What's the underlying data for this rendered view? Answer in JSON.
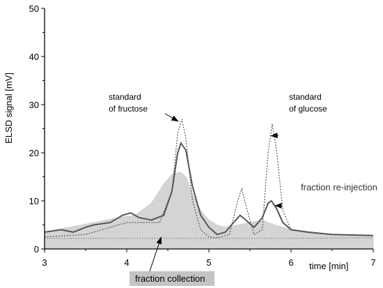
{
  "chart_data": {
    "type": "line",
    "xlabel": "time  [min]",
    "ylabel": "ELSD signal  [mV]",
    "xlim": [
      3,
      7
    ],
    "ylim": [
      0,
      50
    ],
    "xticks": [
      "3",
      "4",
      "5",
      "6",
      "7"
    ],
    "yticks": [
      "0",
      "10",
      "20",
      "30",
      "40",
      "50"
    ],
    "grid": false,
    "series": [
      {
        "style": "filled-area",
        "color": "#d4d4d4",
        "x": [
          3.0,
          3.3,
          3.6,
          3.9,
          4.1,
          4.3,
          4.45,
          4.55,
          4.65,
          4.72,
          4.8,
          4.9,
          5.0,
          5.1,
          5.2,
          5.35,
          5.5,
          5.65,
          5.8,
          6.0,
          6.2,
          6.5,
          6.8,
          7.0
        ],
        "y": [
          3.5,
          4.5,
          5.5,
          6.5,
          7.0,
          9.5,
          13.5,
          15.5,
          16.0,
          15.0,
          11.5,
          8.0,
          6.0,
          5.0,
          4.5,
          5.0,
          5.5,
          6.0,
          5.0,
          4.0,
          3.5,
          3.0,
          2.8,
          2.6
        ]
      },
      {
        "style": "solid",
        "color": "#555555",
        "x": [
          3.0,
          3.2,
          3.35,
          3.5,
          3.6,
          3.8,
          3.95,
          4.05,
          4.15,
          4.3,
          4.45,
          4.55,
          4.62,
          4.66,
          4.72,
          4.8,
          4.9,
          5.0,
          5.1,
          5.2,
          5.3,
          5.38,
          5.45,
          5.55,
          5.65,
          5.72,
          5.76,
          5.82,
          5.9,
          6.0,
          6.2,
          6.5,
          7.0
        ],
        "y": [
          3.5,
          4.0,
          3.5,
          4.5,
          5.0,
          5.5,
          7.0,
          7.5,
          6.5,
          6.0,
          7.0,
          12.0,
          20.0,
          22.0,
          20.5,
          13.0,
          7.0,
          4.5,
          3.0,
          3.5,
          5.5,
          7.0,
          6.0,
          4.5,
          6.5,
          9.5,
          10.0,
          8.5,
          5.5,
          4.0,
          3.5,
          3.0,
          2.8
        ]
      },
      {
        "style": "dotted",
        "color": "#555555",
        "x": [
          3.0,
          3.5,
          3.8,
          4.0,
          4.2,
          4.4,
          4.55,
          4.62,
          4.67,
          4.72,
          4.8,
          4.9,
          5.0,
          5.1,
          5.25,
          5.35,
          5.4,
          5.45,
          5.55,
          5.65,
          5.72,
          5.77,
          5.82,
          5.9,
          6.0,
          6.5,
          7.0
        ],
        "y": [
          2.5,
          3.0,
          4.5,
          5.5,
          5.5,
          5.5,
          12.0,
          24.0,
          27.0,
          23.0,
          10.0,
          4.0,
          2.5,
          2.3,
          3.0,
          10.0,
          12.5,
          9.0,
          3.0,
          4.0,
          20.0,
          26.0,
          21.0,
          8.0,
          4.0,
          3.0,
          2.8
        ]
      },
      {
        "style": "dotted-baseline",
        "color": "#555555",
        "x": [
          3.0,
          4.0,
          5.0,
          6.0,
          7.0
        ],
        "y": [
          2.2,
          2.2,
          2.2,
          2.2,
          2.3
        ]
      }
    ],
    "annotations": [
      {
        "lines": [
          "standard",
          "of fructose"
        ],
        "x": 4.63,
        "y": 26.5
      },
      {
        "lines": [
          "standard",
          "of glucose"
        ],
        "x": 5.75,
        "y": 23.5
      },
      {
        "lines": [
          "fraction re-injection"
        ],
        "x": 5.8,
        "y": 9.0
      },
      {
        "lines": [
          "fraction collection"
        ],
        "x": 4.42,
        "y": 2.5,
        "boxed": true
      }
    ]
  }
}
